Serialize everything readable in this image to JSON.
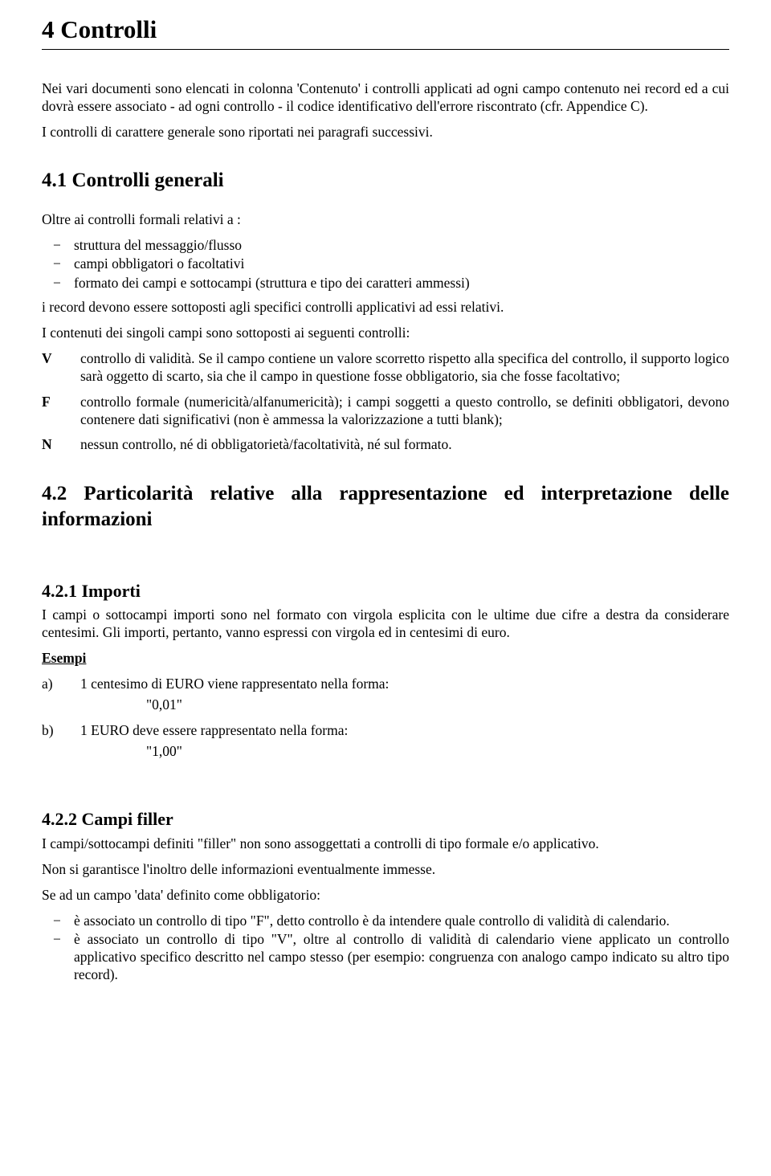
{
  "colors": {
    "text": "#000000",
    "background": "#ffffff",
    "rule": "#000000"
  },
  "typography": {
    "font_family": "Times New Roman",
    "body_fontsize_pt": 13,
    "h1_fontsize_pt": 23,
    "h2_fontsize_pt": 19,
    "h3_fontsize_pt": 16
  },
  "h1": "4  Controlli",
  "intro": "Nei vari documenti sono elencati in colonna 'Contenuto' i controlli applicati ad ogni campo contenuto nei record ed a cui dovrà essere associato  - ad ogni controllo - il codice identificativo dell'errore riscontrato (cfr. Appendice C).",
  "intro2": "I controlli di carattere generale sono riportati nei paragrafi successivi.",
  "s41": {
    "title": "4.1   Controlli generali",
    "lead": "Oltre ai controlli formali relativi a :",
    "bullets": [
      "struttura del messaggio/flusso",
      "campi obbligatori o facoltativi",
      "formato dei campi e sottocampi (struttura e tipo dei caratteri ammessi)"
    ],
    "p1": "i record devono essere sottoposti agli specifici controlli applicativi ad essi relativi.",
    "p2": "I contenuti dei singoli campi sono sottoposti ai seguenti controlli:",
    "defs": [
      {
        "letter": "V",
        "text": "controllo di validità. Se il campo contiene un valore scorretto rispetto alla specifica del controllo, il supporto logico sarà oggetto di scarto, sia che il campo in questione fosse obbligatorio, sia che fosse facoltativo;"
      },
      {
        "letter": "F",
        "text": "controllo formale (numericità/alfanumericità); i campi soggetti a questo controllo, se definiti obbligatori, devono contenere dati significativi (non è ammessa la valorizzazione a tutti blank);"
      },
      {
        "letter": "N",
        "text": "nessun controllo, né di obbligatorietà/facoltatività, né sul formato."
      }
    ]
  },
  "s42": {
    "title": "4.2  Particolarità relative alla rappresentazione ed interpretazione delle informazioni"
  },
  "s421": {
    "title": "4.2.1   Importi",
    "p": "I campi o sottocampi importi sono nel formato con virgola esplicita con le ultime due cifre a destra da considerare centesimi. Gli importi, pertanto, vanno espressi con virgola ed in centesimi di euro.",
    "esempi": "Esempi",
    "a_label": "a)",
    "a_text": "1 centesimo di EURO viene rappresentato nella forma:",
    "a_val": "\"0,01\"",
    "b_label": "b)",
    "b_text": "1 EURO deve essere rappresentato nella forma:",
    "b_val": "\"1,00\""
  },
  "s422": {
    "title": "4.2.2   Campi filler",
    "p1": "I campi/sottocampi definiti \"filler\" non sono assoggettati a controlli di tipo formale e/o applicativo.",
    "p2": " Non si garantisce l'inoltro delle informazioni eventualmente immesse.",
    "p3": "Se ad un campo 'data' definito come obbligatorio:",
    "bullets": [
      "è associato un controllo di tipo \"F\", detto controllo è da intendere quale controllo di validità di calendario.",
      "è associato un controllo di tipo \"V\", oltre al controllo di validità di calendario viene applicato un controllo applicativo specifico descritto nel campo stesso (per esempio: congruenza con analogo campo indicato su altro tipo record)."
    ]
  }
}
